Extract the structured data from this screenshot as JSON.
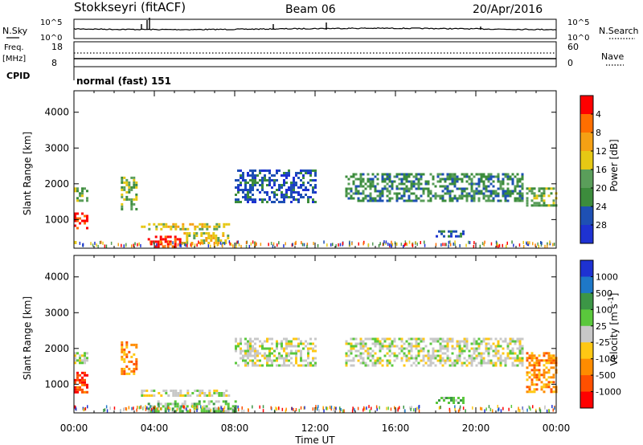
{
  "header": {
    "station": "Stokkseyri (fitACF)",
    "beam": "Beam 06",
    "date": "20/Apr/2016"
  },
  "top_panel": {
    "left_label": "N.Sky",
    "right_label": "N.Search",
    "left_ticks": [
      "10^5",
      "10^0"
    ],
    "right_ticks": [
      "10^5",
      "10^0"
    ]
  },
  "freq_panel": {
    "left_label_line1": "Freq.",
    "left_label_line2": "[MHz]",
    "right_label": "Nave",
    "left_ticks": [
      "18",
      "8"
    ],
    "right_ticks": [
      "60",
      "0"
    ],
    "cpid_label": "CPID",
    "mode_text": "normal (fast) 151"
  },
  "x_axis": {
    "label": "Time UT",
    "tick_labels": [
      "00:00",
      "04:00",
      "08:00",
      "12:00",
      "16:00",
      "20:00",
      "00:00"
    ]
  },
  "colors": {
    "power_scale": [
      "#1e32d2",
      "#1e50b4",
      "#3c8c3c",
      "#5a9e5a",
      "#e6c814",
      "#f5a014",
      "#ff6e00",
      "#ff0000"
    ],
    "velocity_scale": [
      "#1e32d2",
      "#1e78c8",
      "#3c9646",
      "#5ac83c",
      "#c8c8c8",
      "#ffc814",
      "#ff8c00",
      "#ff5000",
      "#ff0000"
    ]
  },
  "chart_data": [
    {
      "type": "heatmap",
      "title": "Power",
      "xlabel": "Time UT",
      "ylabel": "Slant Range [km]",
      "y_ticks": [
        1000,
        2000,
        3000,
        4000
      ],
      "ylim": [
        200,
        4600
      ],
      "xlim_hours": [
        0,
        24
      ],
      "colorbar": {
        "label": "Power [dB]",
        "ticks": [
          "4",
          "8",
          "12",
          "16",
          "20",
          "24",
          "28"
        ]
      },
      "features": [
        {
          "start": "00:00",
          "end": "00:40",
          "range_min": 750,
          "range_max": 1200,
          "level": 7
        },
        {
          "start": "00:00",
          "end": "00:40",
          "range_min": 1550,
          "range_max": 1900,
          "level": 3
        },
        {
          "start": "02:20",
          "end": "03:10",
          "range_min": 1300,
          "range_max": 2200,
          "level": 3
        },
        {
          "start": "03:20",
          "end": "07:40",
          "range_min": 700,
          "range_max": 900,
          "level": 4
        },
        {
          "start": "03:40",
          "end": "05:20",
          "range_min": 250,
          "range_max": 550,
          "level": 7
        },
        {
          "start": "05:20",
          "end": "07:40",
          "range_min": 350,
          "range_max": 650,
          "level": 4
        },
        {
          "start": "08:00",
          "end": "12:00",
          "range_min": 1500,
          "range_max": 2400,
          "level": 1
        },
        {
          "start": "13:30",
          "end": "22:20",
          "range_min": 1500,
          "range_max": 2300,
          "level": 2
        },
        {
          "start": "18:00",
          "end": "19:20",
          "range_min": 550,
          "range_max": 700,
          "level": 1
        },
        {
          "start": "22:30",
          "end": "24:00",
          "range_min": 1400,
          "range_max": 1900,
          "level": 3
        }
      ]
    },
    {
      "type": "heatmap",
      "title": "Velocity",
      "xlabel": "Time UT",
      "ylabel": "Slant Range [km]",
      "y_ticks": [
        1000,
        2000,
        3000,
        4000
      ],
      "ylim": [
        200,
        4600
      ],
      "xlim_hours": [
        0,
        24
      ],
      "colorbar": {
        "label": "Velocity [m s-1]",
        "ticks": [
          "1000",
          "500",
          "100",
          "25",
          "-25",
          "-100",
          "-500",
          "-1000"
        ]
      },
      "features": [
        {
          "start": "00:00",
          "end": "00:40",
          "range_min": 750,
          "range_max": 1350,
          "level": 7
        },
        {
          "start": "00:00",
          "end": "00:40",
          "range_min": 1600,
          "range_max": 1900,
          "level": 4
        },
        {
          "start": "02:20",
          "end": "03:10",
          "range_min": 1300,
          "range_max": 2200,
          "level": 6
        },
        {
          "start": "03:20",
          "end": "07:40",
          "range_min": 650,
          "range_max": 850,
          "level": 4
        },
        {
          "start": "03:40",
          "end": "08:00",
          "range_min": 250,
          "range_max": 550,
          "level": 3
        },
        {
          "start": "08:00",
          "end": "12:00",
          "range_min": 1500,
          "range_max": 2300,
          "level": 4
        },
        {
          "start": "13:30",
          "end": "22:20",
          "range_min": 1500,
          "range_max": 2300,
          "level": 4
        },
        {
          "start": "18:00",
          "end": "19:20",
          "range_min": 500,
          "range_max": 650,
          "level": 3
        },
        {
          "start": "22:30",
          "end": "24:00",
          "range_min": 800,
          "range_max": 1900,
          "level": 6
        }
      ]
    }
  ]
}
